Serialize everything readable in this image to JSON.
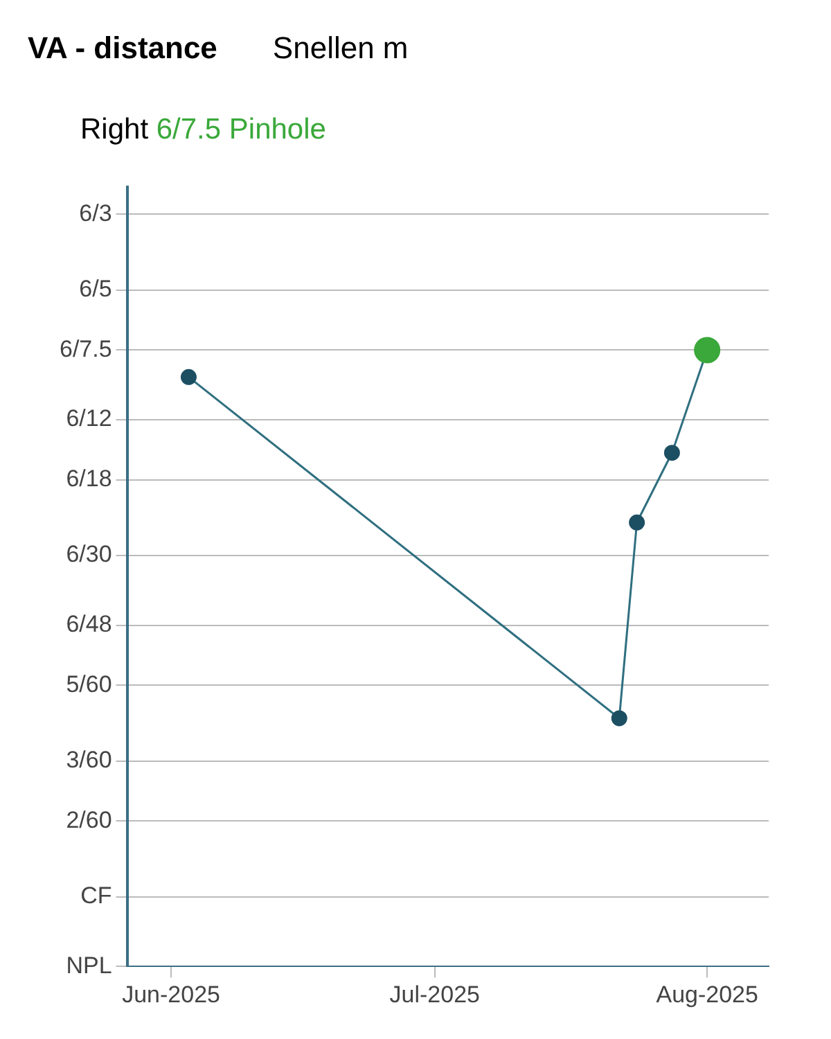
{
  "chart_data": {
    "type": "line",
    "title": "VA - distance",
    "subtitle": "Snellen m",
    "annotations": [
      "Right"
    ],
    "x": [
      "2025-06-03",
      "2025-07-22",
      "2025-07-24",
      "2025-07-28",
      "2025-08-01"
    ],
    "series": [
      {
        "color": "#2f6f80",
        "values": [
          0.667,
          0.0667,
          0.25,
          0.4,
          0.8
        ]
      },
      {
        "type": "scatter",
        "name": "6/7.5 Pinhole",
        "color": "#3aa83a",
        "x": [
          "2025-08-01"
        ],
        "values": [
          0.8
        ]
      }
    ],
    "xlim": [
      "2025-05-27",
      "2025-08-08"
    ],
    "xticks": [
      {
        "value": "2025-06-01",
        "label": "Jun-2025"
      },
      {
        "value": "2025-07-01",
        "label": "Jul-2025"
      },
      {
        "value": "2025-08-01",
        "label": "Aug-2025"
      }
    ],
    "ylim": [
      0.0125,
      2.4
    ],
    "yticks": [
      {
        "value": 0.0125,
        "label": "NPL"
      },
      {
        "value": 0.02,
        "label": "CF"
      },
      {
        "value": 0.03333,
        "label": "2/60"
      },
      {
        "value": 0.05,
        "label": "3/60"
      },
      {
        "value": 0.08333,
        "label": "5/60"
      },
      {
        "value": 0.125,
        "label": "6/48"
      },
      {
        "value": 0.2,
        "label": "6/30"
      },
      {
        "value": 0.3333,
        "label": "6/18"
      },
      {
        "value": 0.5,
        "label": "6/12"
      },
      {
        "value": 0.8,
        "label": "6/7.5"
      },
      {
        "value": 1.2,
        "label": "6/5"
      },
      {
        "value": 2,
        "label": "6/3"
      }
    ],
    "grid": "y",
    "log": "y",
    "marker": "circle",
    "line_style": "solid"
  }
}
